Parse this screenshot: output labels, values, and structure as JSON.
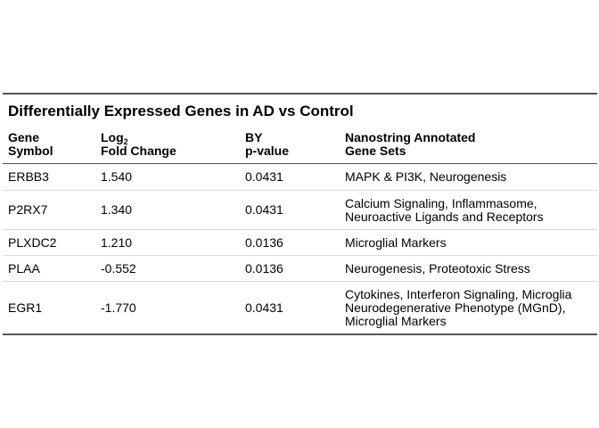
{
  "table": {
    "title": "Differentially Expressed Genes in AD vs Control",
    "headers": {
      "gene_symbol": [
        "Gene",
        "Symbol"
      ],
      "log_fold_change": {
        "base": "Log",
        "subscript": "2",
        "second_line": "Fold Change"
      },
      "by_pvalue": [
        "BY",
        "p-value"
      ],
      "gene_sets": [
        "Nanostring Annotated",
        "Gene Sets"
      ]
    },
    "rows": [
      {
        "gene": "ERBB3",
        "log2fc": "1.540",
        "pvalue": "0.0431",
        "gene_sets": [
          "MAPK & PI3K, Neurogenesis"
        ]
      },
      {
        "gene": "P2RX7",
        "log2fc": "1.340",
        "pvalue": "0.0431",
        "gene_sets": [
          "Calcium Signaling, Inflammasome,",
          "Neuroactive Ligands and Receptors"
        ]
      },
      {
        "gene": "PLXDC2",
        "log2fc": "1.210",
        "pvalue": "0.0136",
        "gene_sets": [
          "Microglial Markers"
        ]
      },
      {
        "gene": "PLAA",
        "log2fc": "-0.552",
        "pvalue": "0.0136",
        "gene_sets": [
          "Neurogenesis, Proteotoxic Stress"
        ]
      },
      {
        "gene": "EGR1",
        "log2fc": "-1.770",
        "pvalue": "0.0431",
        "gene_sets": [
          "Cytokines, Interferon Signaling, Microglia",
          "Neurodegenerative Phenotype (MGnD),",
          "Microglial Markers"
        ]
      }
    ]
  }
}
